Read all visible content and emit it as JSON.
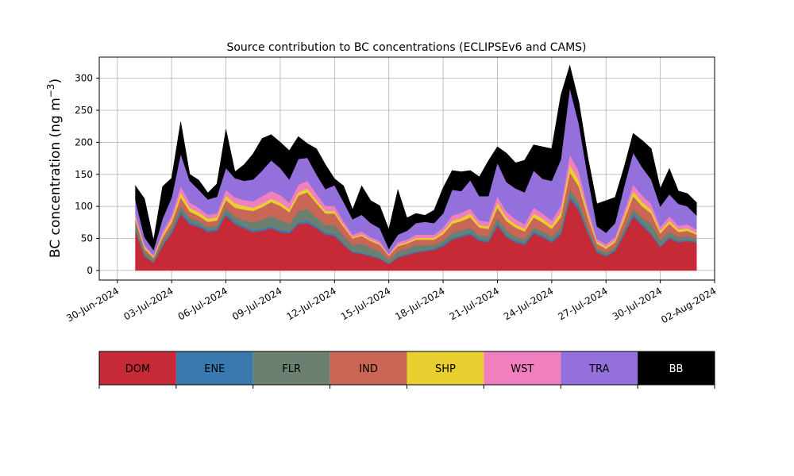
{
  "chart_data": {
    "type": "area",
    "title": "Source contribution to BC concentrations (ECLIPSEv6 and CAMS)",
    "ylabel": "BC concentration (ng m",
    "ylabel_sup": "−3",
    "ylabel_close": ")",
    "xlim": [
      "2024-06-29",
      "2024-08-02"
    ],
    "ylim": [
      -15,
      333
    ],
    "yticks": [
      0,
      50,
      100,
      150,
      200,
      250,
      300
    ],
    "xticks": [
      {
        "date": "2024-06-30",
        "label": "30-Jun-2024"
      },
      {
        "date": "2024-07-03",
        "label": "03-Jul-2024"
      },
      {
        "date": "2024-07-06",
        "label": "06-Jul-2024"
      },
      {
        "date": "2024-07-09",
        "label": "09-Jul-2024"
      },
      {
        "date": "2024-07-12",
        "label": "12-Jul-2024"
      },
      {
        "date": "2024-07-15",
        "label": "15-Jul-2024"
      },
      {
        "date": "2024-07-18",
        "label": "18-Jul-2024"
      },
      {
        "date": "2024-07-21",
        "label": "21-Jul-2024"
      },
      {
        "date": "2024-07-24",
        "label": "24-Jul-2024"
      },
      {
        "date": "2024-07-27",
        "label": "27-Jul-2024"
      },
      {
        "date": "2024-07-30",
        "label": "30-Jul-2024"
      },
      {
        "date": "2024-08-02",
        "label": "02-Aug-2024"
      }
    ],
    "grid": true,
    "stacked": true,
    "x": [
      "2024-07-01",
      "2024-07-01 12:00",
      "2024-07-02",
      "2024-07-02 12:00",
      "2024-07-03",
      "2024-07-03 12:00",
      "2024-07-04",
      "2024-07-04 12:00",
      "2024-07-05",
      "2024-07-05 12:00",
      "2024-07-06",
      "2024-07-06 12:00",
      "2024-07-07",
      "2024-07-07 12:00",
      "2024-07-08",
      "2024-07-08 12:00",
      "2024-07-09",
      "2024-07-09 12:00",
      "2024-07-10",
      "2024-07-10 12:00",
      "2024-07-11",
      "2024-07-11 12:00",
      "2024-07-12",
      "2024-07-12 12:00",
      "2024-07-13",
      "2024-07-13 12:00",
      "2024-07-14",
      "2024-07-14 12:00",
      "2024-07-15",
      "2024-07-15 12:00",
      "2024-07-16",
      "2024-07-16 12:00",
      "2024-07-17",
      "2024-07-17 12:00",
      "2024-07-18",
      "2024-07-18 12:00",
      "2024-07-19",
      "2024-07-19 12:00",
      "2024-07-20",
      "2024-07-20 12:00",
      "2024-07-21",
      "2024-07-21 12:00",
      "2024-07-22",
      "2024-07-22 12:00",
      "2024-07-23",
      "2024-07-23 12:00",
      "2024-07-24",
      "2024-07-24 12:00",
      "2024-07-25",
      "2024-07-25 12:00",
      "2024-07-26",
      "2024-07-26 12:00",
      "2024-07-27",
      "2024-07-27 12:00",
      "2024-07-28",
      "2024-07-28 12:00",
      "2024-07-29",
      "2024-07-29 12:00",
      "2024-07-30",
      "2024-07-30 12:00",
      "2024-07-31",
      "2024-07-31 12:00",
      "2024-08-01"
    ],
    "series": [
      {
        "name": "DOM",
        "color": "#c62a37",
        "values": [
          62,
          22,
          12,
          38,
          58,
          88,
          72,
          68,
          60,
          62,
          86,
          72,
          66,
          60,
          62,
          66,
          60,
          58,
          72,
          74,
          66,
          56,
          54,
          40,
          28,
          26,
          22,
          18,
          10,
          20,
          24,
          28,
          30,
          32,
          38,
          48,
          52,
          56,
          46,
          44,
          70,
          52,
          44,
          40,
          58,
          52,
          44,
          56,
          112,
          94,
          58,
          28,
          22,
          30,
          56,
          84,
          70,
          56,
          36,
          50,
          44,
          46,
          44
        ]
      },
      {
        "name": "ENE",
        "color": "#3a78b0",
        "values": [
          2,
          2,
          1,
          2,
          3,
          4,
          4,
          3,
          3,
          3,
          4,
          4,
          3,
          3,
          3,
          3,
          3,
          3,
          3,
          4,
          3,
          3,
          3,
          2,
          2,
          2,
          2,
          2,
          1,
          2,
          2,
          2,
          2,
          2,
          3,
          3,
          3,
          3,
          3,
          3,
          4,
          3,
          3,
          3,
          3,
          3,
          3,
          3,
          5,
          5,
          3,
          2,
          2,
          2,
          3,
          4,
          4,
          3,
          2,
          3,
          2,
          2,
          2
        ]
      },
      {
        "name": "FLR",
        "color": "#6b8070",
        "values": [
          10,
          6,
          4,
          6,
          6,
          8,
          6,
          6,
          5,
          5,
          8,
          8,
          10,
          12,
          14,
          16,
          16,
          12,
          18,
          18,
          14,
          12,
          14,
          12,
          10,
          14,
          12,
          10,
          6,
          8,
          8,
          10,
          8,
          6,
          6,
          8,
          8,
          8,
          6,
          6,
          8,
          8,
          6,
          6,
          6,
          6,
          6,
          8,
          10,
          8,
          6,
          4,
          4,
          4,
          6,
          8,
          8,
          14,
          10,
          8,
          6,
          6,
          4
        ]
      },
      {
        "name": "IND",
        "color": "#c96656",
        "values": [
          6,
          4,
          3,
          6,
          8,
          14,
          10,
          8,
          8,
          8,
          12,
          14,
          16,
          18,
          20,
          22,
          22,
          18,
          24,
          26,
          22,
          18,
          18,
          14,
          10,
          12,
          10,
          10,
          6,
          8,
          8,
          8,
          8,
          8,
          10,
          14,
          14,
          16,
          12,
          12,
          16,
          14,
          14,
          12,
          16,
          14,
          12,
          16,
          26,
          24,
          16,
          8,
          6,
          8,
          14,
          20,
          18,
          16,
          10,
          12,
          8,
          8,
          6
        ]
      },
      {
        "name": "SHP",
        "color": "#e6cf2f",
        "values": [
          4,
          3,
          2,
          4,
          5,
          8,
          6,
          6,
          5,
          5,
          7,
          7,
          6,
          5,
          5,
          5,
          5,
          5,
          5,
          6,
          5,
          4,
          4,
          3,
          2,
          2,
          2,
          2,
          1,
          2,
          2,
          3,
          3,
          3,
          4,
          5,
          5,
          6,
          4,
          4,
          8,
          6,
          5,
          4,
          6,
          6,
          5,
          8,
          12,
          10,
          6,
          3,
          3,
          3,
          6,
          8,
          7,
          6,
          4,
          5,
          4,
          4,
          3
        ]
      },
      {
        "name": "WST",
        "color": "#f07fbf",
        "values": [
          6,
          3,
          2,
          5,
          6,
          10,
          8,
          7,
          6,
          6,
          9,
          9,
          9,
          10,
          12,
          12,
          12,
          10,
          12,
          12,
          10,
          8,
          8,
          6,
          4,
          5,
          4,
          4,
          2,
          4,
          4,
          5,
          5,
          5,
          6,
          8,
          8,
          8,
          7,
          7,
          10,
          9,
          8,
          7,
          9,
          8,
          8,
          10,
          16,
          14,
          9,
          4,
          4,
          5,
          8,
          10,
          10,
          9,
          6,
          7,
          6,
          6,
          5
        ]
      },
      {
        "name": "TRA",
        "color": "#9370db",
        "values": [
          20,
          12,
          8,
          20,
          28,
          50,
          34,
          28,
          24,
          26,
          34,
          30,
          30,
          34,
          40,
          48,
          42,
          36,
          40,
          36,
          30,
          26,
          32,
          30,
          24,
          26,
          22,
          20,
          8,
          12,
          14,
          18,
          20,
          18,
          22,
          40,
          34,
          44,
          38,
          40,
          52,
          46,
          48,
          50,
          58,
          54,
          62,
          72,
          104,
          74,
          48,
          20,
          18,
          22,
          38,
          50,
          44,
          38,
          32,
          34,
          34,
          28,
          22
        ]
      },
      {
        "name": "BB",
        "color": "#000000",
        "values": [
          22,
          60,
          15,
          50,
          30,
          50,
          10,
          15,
          10,
          20,
          60,
          10,
          25,
          40,
          50,
          40,
          40,
          45,
          35,
          22,
          40,
          38,
          10,
          25,
          15,
          45,
          35,
          35,
          30,
          70,
          20,
          15,
          10,
          20,
          40,
          30,
          30,
          15,
          30,
          55,
          25,
          45,
          40,
          50,
          40,
          50,
          50,
          100,
          35,
          34,
          30,
          35,
          50,
          40,
          30,
          30,
          42,
          48,
          28,
          40,
          20,
          20,
          20
        ]
      }
    ]
  }
}
